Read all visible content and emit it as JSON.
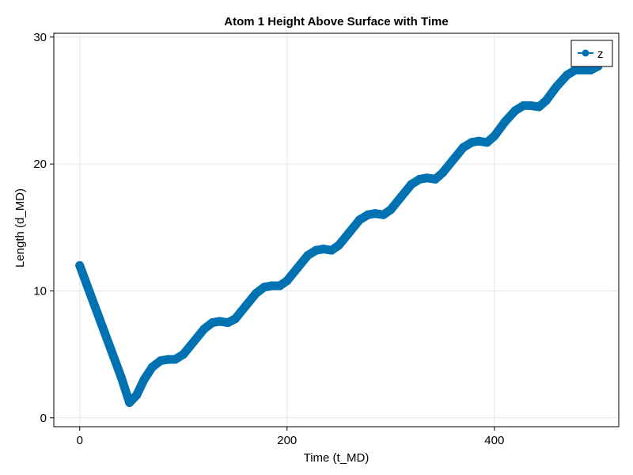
{
  "chart_data": {
    "type": "scatter",
    "title": "Atom 1 Height Above Surface with Time",
    "xlabel": "Time (t_MD)",
    "ylabel": "Length (d_MD)",
    "xlim": [
      -25,
      520
    ],
    "ylim": [
      -0.7,
      30.3
    ],
    "xticks": [
      0,
      200,
      400
    ],
    "yticks": [
      0,
      10,
      20,
      30
    ],
    "grid": true,
    "legend_position": "top-right",
    "series": [
      {
        "name": "z",
        "color": "#0072b2",
        "points": [
          [
            0,
            12.0
          ],
          [
            10,
            9.8
          ],
          [
            20,
            7.6
          ],
          [
            30,
            5.4
          ],
          [
            40,
            3.2
          ],
          [
            48,
            1.2
          ],
          [
            55,
            1.8
          ],
          [
            62,
            3.0
          ],
          [
            70,
            4.0
          ],
          [
            78,
            4.5
          ],
          [
            85,
            4.6
          ],
          [
            92,
            4.6
          ],
          [
            100,
            5.0
          ],
          [
            110,
            6.0
          ],
          [
            120,
            7.0
          ],
          [
            128,
            7.5
          ],
          [
            135,
            7.6
          ],
          [
            143,
            7.5
          ],
          [
            150,
            7.8
          ],
          [
            160,
            8.8
          ],
          [
            170,
            9.8
          ],
          [
            178,
            10.3
          ],
          [
            185,
            10.4
          ],
          [
            193,
            10.4
          ],
          [
            200,
            10.8
          ],
          [
            210,
            11.8
          ],
          [
            220,
            12.8
          ],
          [
            228,
            13.2
          ],
          [
            235,
            13.3
          ],
          [
            243,
            13.2
          ],
          [
            250,
            13.6
          ],
          [
            260,
            14.6
          ],
          [
            270,
            15.6
          ],
          [
            278,
            16.0
          ],
          [
            285,
            16.1
          ],
          [
            293,
            16.0
          ],
          [
            300,
            16.4
          ],
          [
            310,
            17.4
          ],
          [
            320,
            18.4
          ],
          [
            328,
            18.8
          ],
          [
            335,
            18.9
          ],
          [
            343,
            18.8
          ],
          [
            350,
            19.3
          ],
          [
            360,
            20.3
          ],
          [
            370,
            21.3
          ],
          [
            378,
            21.7
          ],
          [
            385,
            21.8
          ],
          [
            393,
            21.7
          ],
          [
            400,
            22.2
          ],
          [
            410,
            23.3
          ],
          [
            420,
            24.2
          ],
          [
            428,
            24.6
          ],
          [
            435,
            24.6
          ],
          [
            443,
            24.5
          ],
          [
            450,
            25.0
          ],
          [
            460,
            26.1
          ],
          [
            470,
            27.0
          ],
          [
            478,
            27.4
          ],
          [
            485,
            27.4
          ],
          [
            493,
            27.4
          ],
          [
            500,
            27.7
          ]
        ]
      }
    ]
  }
}
